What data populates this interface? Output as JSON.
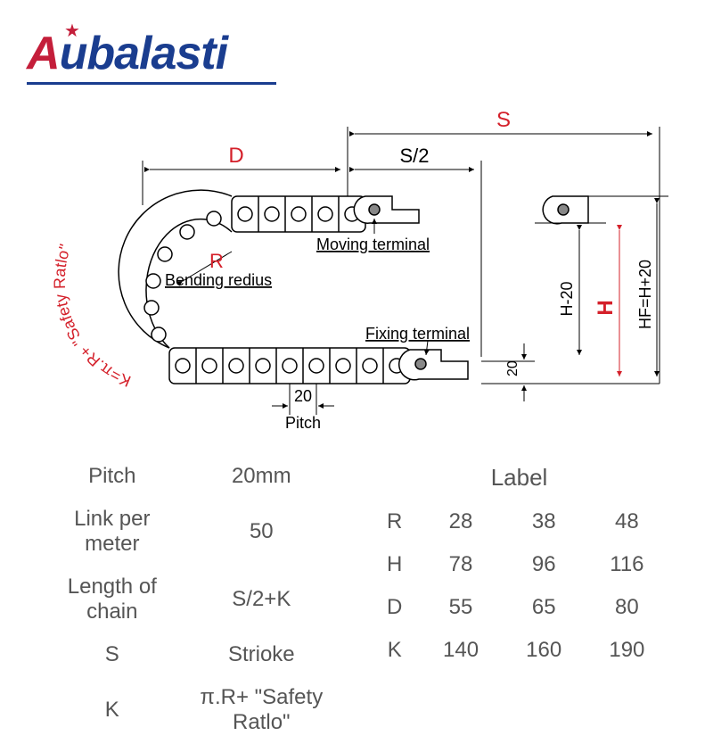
{
  "logo": {
    "prefix": "A",
    "suffix": "ubalasti",
    "color_prefix": "#c41e3a",
    "color_suffix": "#1a3d8f",
    "line_color": "#1a3d8f"
  },
  "diagram": {
    "stroke_color": "#000000",
    "stroke_width": 1.5,
    "accent_color": "#d4202a",
    "text_color": "#333333",
    "font_size": 20,
    "pitch_value": "20",
    "pitch_label": "Pitch",
    "moving_terminal": "Moving terminal",
    "fixing_terminal": "Fixing terminal",
    "bending_radius": "Bending redius",
    "k_formula": "K=π.R+ \"Safety Ratlo\"",
    "bottom20": "20",
    "hm20": "H-20",
    "hf_formula": "HF=H+20",
    "label_D": "D",
    "label_S": "S",
    "label_S2": "S/2",
    "label_R": "R",
    "label_H": "H"
  },
  "left_table": {
    "rows": [
      [
        "Pitch",
        "20mm"
      ],
      [
        "Link per meter",
        "50"
      ],
      [
        "Length of chain",
        "S/2+K"
      ],
      [
        "S",
        "Strioke"
      ],
      [
        "K",
        "π.R+ \"Safety Ratlo\""
      ]
    ]
  },
  "right_table": {
    "header": "Label",
    "rows": [
      [
        "R",
        "28",
        "38",
        "48"
      ],
      [
        "H",
        "78",
        "96",
        "116"
      ],
      [
        "D",
        "55",
        "65",
        "80"
      ],
      [
        "K",
        "140",
        "160",
        "190"
      ]
    ]
  },
  "colors": {
    "text": "#555555",
    "bg": "#ffffff"
  }
}
